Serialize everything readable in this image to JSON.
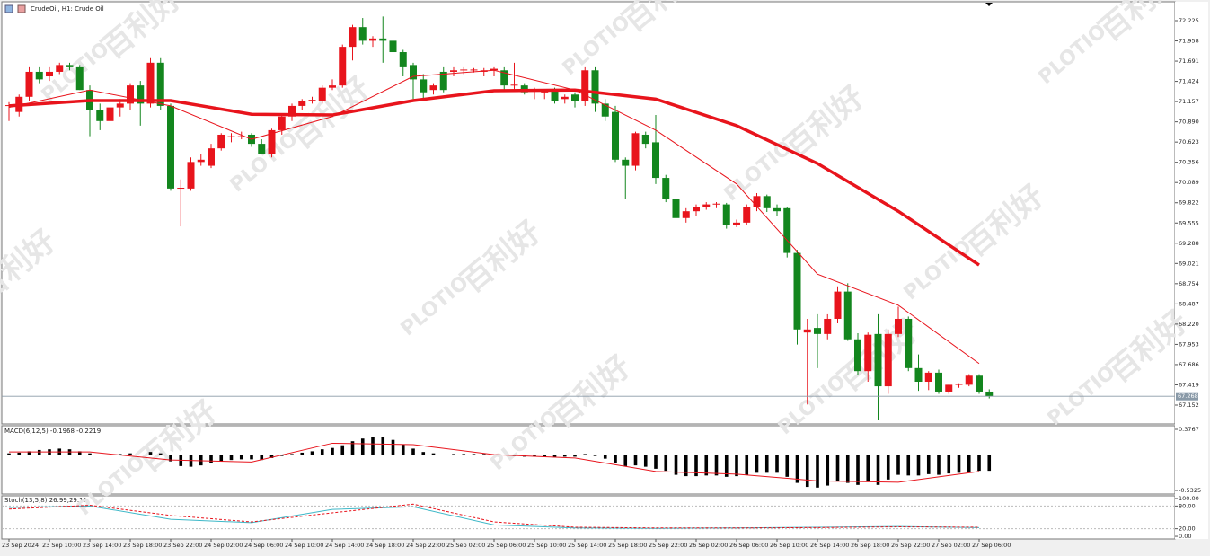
{
  "chart_data": [
    {
      "type": "candlestick",
      "title": "CrudeOil, H1:  Crude Oil",
      "watermark": [
        "百利好",
        "PLOTIO"
      ],
      "up_color": "#e8141c",
      "down_color": "#13861e",
      "ylim": [
        66.903,
        72.474
      ],
      "yticks": [
        72.225,
        71.958,
        71.691,
        71.424,
        71.157,
        {
          "value": 70.89,
          "label": "70.890"
        },
        70.623,
        70.356,
        70.089,
        69.822,
        69.555,
        69.288,
        69.021,
        68.754,
        68.487,
        {
          "value": 68.22,
          "label": "68.220"
        },
        67.953,
        67.686,
        67.419,
        67.152
      ],
      "current_price": 67.268,
      "x_labels": [
        "23 Sep 2024",
        "23 Sep 10:00",
        "23 Sep 14:00",
        "23 Sep 18:00",
        "23 Sep 22:00",
        "24 Sep 02:00",
        "24 Sep 06:00",
        "24 Sep 10:00",
        "24 Sep 14:00",
        "24 Sep 18:00",
        "24 Sep 22:00",
        "25 Sep 02:00",
        "25 Sep 06:00",
        "25 Sep 10:00",
        "25 Sep 14:00",
        "25 Sep 18:00",
        "25 Sep 22:00",
        "26 Sep 02:00",
        "26 Sep 06:00",
        "26 Sep 10:00",
        "26 Sep 14:00",
        "26 Sep 18:00",
        "26 Sep 22:00",
        "27 Sep 02:00",
        "27 Sep 06:00"
      ],
      "candles": [
        [
          71.1,
          71.15,
          70.9,
          71.11
        ],
        [
          71.02,
          71.25,
          70.96,
          71.22
        ],
        [
          71.22,
          71.61,
          71.17,
          71.55
        ],
        [
          71.55,
          71.61,
          71.4,
          71.45
        ],
        [
          71.49,
          71.61,
          71.43,
          71.55
        ],
        [
          71.55,
          71.67,
          71.52,
          71.64
        ],
        [
          71.64,
          71.67,
          71.57,
          71.61
        ],
        [
          71.61,
          71.64,
          71.31,
          71.31
        ],
        [
          71.31,
          71.37,
          70.7,
          71.05
        ],
        [
          71.05,
          71.13,
          70.78,
          70.9
        ],
        [
          70.9,
          71.1,
          70.84,
          71.08
        ],
        [
          71.08,
          71.19,
          70.96,
          71.13
        ],
        [
          71.13,
          71.4,
          71.05,
          71.37
        ],
        [
          71.37,
          71.43,
          70.84,
          71.13
        ],
        [
          71.13,
          71.73,
          71.08,
          71.67
        ],
        [
          71.67,
          71.73,
          71.05,
          71.1
        ],
        [
          71.1,
          71.13,
          69.98,
          70.01
        ],
        [
          70.01,
          70.13,
          69.51,
          70.02
        ],
        [
          70.01,
          70.42,
          69.98,
          70.36
        ],
        [
          70.36,
          70.46,
          70.31,
          70.39
        ],
        [
          70.31,
          70.6,
          70.28,
          70.54
        ],
        [
          70.54,
          70.74,
          70.51,
          70.72
        ],
        [
          70.69,
          70.74,
          70.62,
          70.7
        ],
        [
          70.69,
          70.76,
          70.66,
          70.7
        ],
        [
          70.72,
          70.74,
          70.56,
          70.6
        ],
        [
          70.6,
          70.66,
          70.46,
          70.46
        ],
        [
          70.46,
          70.8,
          70.42,
          70.78
        ],
        [
          70.78,
          70.98,
          70.72,
          70.96
        ],
        [
          70.96,
          71.13,
          70.9,
          71.1
        ],
        [
          71.1,
          71.19,
          71.05,
          71.17
        ],
        [
          71.17,
          71.22,
          71.13,
          71.18
        ],
        [
          71.17,
          71.37,
          71.13,
          71.34
        ],
        [
          71.34,
          71.45,
          71.31,
          71.37
        ],
        [
          71.37,
          71.91,
          71.34,
          71.88
        ],
        [
          71.88,
          72.17,
          71.7,
          72.14
        ],
        [
          72.14,
          72.26,
          71.91,
          71.96
        ],
        [
          71.96,
          72.02,
          71.88,
          71.99
        ],
        [
          71.99,
          72.28,
          71.67,
          71.96
        ],
        [
          71.96,
          72.0,
          71.67,
          71.81
        ],
        [
          71.81,
          71.84,
          71.49,
          71.61
        ],
        [
          71.64,
          71.67,
          71.19,
          71.45
        ],
        [
          71.45,
          71.52,
          71.16,
          71.28
        ],
        [
          71.31,
          71.4,
          71.25,
          71.37
        ],
        [
          71.55,
          71.61,
          71.28,
          71.31
        ],
        [
          71.55,
          71.61,
          71.49,
          71.57
        ],
        [
          71.57,
          71.61,
          71.52,
          71.58
        ],
        [
          71.57,
          71.6,
          71.54,
          71.58
        ],
        [
          71.55,
          71.6,
          71.49,
          71.57
        ],
        [
          71.57,
          71.61,
          71.49,
          71.59
        ],
        [
          71.57,
          71.61,
          71.31,
          71.37
        ],
        [
          71.37,
          71.67,
          71.31,
          71.38
        ],
        [
          71.37,
          71.4,
          71.25,
          71.28
        ],
        [
          71.31,
          71.34,
          71.19,
          71.32
        ],
        [
          71.28,
          71.31,
          71.19,
          71.29
        ],
        [
          71.31,
          71.34,
          71.13,
          71.17
        ],
        [
          71.19,
          71.25,
          71.13,
          71.22
        ],
        [
          71.25,
          71.28,
          71.08,
          71.17
        ],
        [
          71.17,
          71.61,
          71.1,
          71.57
        ],
        [
          71.57,
          71.61,
          71.02,
          71.13
        ],
        [
          71.13,
          71.19,
          70.9,
          70.96
        ],
        [
          71.02,
          71.1,
          70.36,
          70.39
        ],
        [
          70.39,
          70.42,
          69.87,
          70.31
        ],
        [
          70.31,
          70.76,
          70.25,
          70.74
        ],
        [
          70.72,
          70.76,
          70.54,
          70.6
        ],
        [
          70.62,
          70.98,
          70.07,
          70.15
        ],
        [
          70.15,
          70.19,
          69.83,
          69.87
        ],
        [
          69.87,
          69.91,
          69.24,
          69.62
        ],
        [
          69.62,
          69.75,
          69.56,
          69.71
        ],
        [
          69.71,
          69.8,
          69.65,
          69.77
        ],
        [
          69.77,
          69.83,
          69.73,
          69.8
        ],
        [
          69.8,
          69.83,
          69.75,
          69.81
        ],
        [
          69.8,
          69.82,
          69.48,
          69.53
        ],
        [
          69.53,
          69.6,
          69.5,
          69.56
        ],
        [
          69.56,
          69.8,
          69.53,
          69.77
        ],
        [
          69.77,
          69.95,
          69.71,
          69.91
        ],
        [
          69.91,
          69.93,
          69.7,
          69.75
        ],
        [
          69.75,
          69.8,
          69.65,
          69.71
        ],
        [
          69.75,
          69.77,
          69.1,
          69.16
        ],
        [
          69.16,
          69.2,
          67.95,
          68.15
        ],
        [
          68.11,
          68.29,
          67.16,
          68.15
        ],
        [
          68.17,
          68.35,
          67.64,
          68.09
        ],
        [
          68.09,
          68.35,
          68.02,
          68.29
        ],
        [
          68.29,
          68.72,
          68.23,
          68.65
        ],
        [
          68.65,
          68.76,
          68.0,
          68.02
        ],
        [
          68.02,
          68.1,
          67.55,
          67.6
        ],
        [
          67.6,
          68.11,
          67.46,
          68.08
        ],
        [
          68.09,
          68.35,
          66.95,
          67.4
        ],
        [
          67.4,
          68.15,
          67.3,
          68.09
        ],
        [
          68.09,
          68.45,
          68.05,
          68.29
        ],
        [
          68.29,
          68.32,
          67.6,
          67.64
        ],
        [
          67.64,
          67.82,
          67.34,
          67.46
        ],
        [
          67.46,
          67.6,
          67.35,
          67.58
        ],
        [
          67.58,
          67.62,
          67.3,
          67.33
        ],
        [
          67.33,
          67.42,
          67.3,
          67.42
        ],
        [
          67.42,
          67.44,
          67.38,
          67.43
        ],
        [
          67.42,
          67.56,
          67.4,
          67.54
        ],
        [
          67.54,
          67.56,
          67.3,
          67.33
        ],
        [
          67.33,
          67.36,
          67.24,
          67.27
        ]
      ],
      "series": [
        {
          "color": "#e8141c",
          "width": 1,
          "x": [
            0,
            8,
            16,
            24,
            32,
            40,
            48,
            56,
            64,
            72,
            80,
            88,
            96
          ],
          "values": [
            71.08,
            71.31,
            71.1,
            70.66,
            70.96,
            71.49,
            71.57,
            71.31,
            70.78,
            70.07,
            68.88,
            68.47,
            67.7
          ]
        },
        {
          "color": "#e8141c",
          "width": 3.5,
          "x": [
            0,
            8,
            16,
            24,
            32,
            40,
            48,
            56,
            64,
            72,
            80,
            88,
            96
          ],
          "values": [
            71.1,
            71.17,
            71.17,
            70.99,
            70.98,
            71.17,
            71.3,
            71.31,
            71.19,
            70.84,
            70.34,
            69.71,
            69.0
          ]
        }
      ]
    },
    {
      "type": "macd",
      "title": "MACD(6,12,5) -0.1968 -0.2219",
      "ylim": [
        -0.586,
        0.43
      ],
      "yticks": [
        0.3767,
        -0.5325
      ],
      "bar_color": "#000000",
      "values": [
        0.02,
        0.03,
        0.05,
        0.07,
        0.08,
        0.09,
        0.08,
        0.05,
        0.02,
        -0.01,
        0.0,
        0.01,
        0.02,
        0.0,
        0.04,
        0.02,
        -0.1,
        -0.17,
        -0.18,
        -0.16,
        -0.13,
        -0.1,
        -0.08,
        -0.07,
        -0.07,
        -0.08,
        -0.05,
        -0.02,
        0.01,
        0.03,
        0.05,
        0.08,
        0.1,
        0.14,
        0.2,
        0.24,
        0.26,
        0.26,
        0.22,
        0.15,
        0.09,
        0.04,
        0.02,
        0.0,
        0.01,
        0.01,
        0.01,
        0.01,
        0.0,
        -0.01,
        -0.02,
        -0.03,
        -0.03,
        -0.03,
        -0.04,
        -0.03,
        -0.03,
        0.01,
        -0.02,
        -0.06,
        -0.12,
        -0.17,
        -0.16,
        -0.18,
        -0.21,
        -0.24,
        -0.3,
        -0.32,
        -0.32,
        -0.31,
        -0.31,
        -0.33,
        -0.32,
        -0.3,
        -0.27,
        -0.27,
        -0.27,
        -0.33,
        -0.42,
        -0.48,
        -0.49,
        -0.46,
        -0.4,
        -0.42,
        -0.45,
        -0.4,
        -0.45,
        -0.37,
        -0.3,
        -0.31,
        -0.31,
        -0.29,
        -0.3,
        -0.28,
        -0.27,
        -0.26,
        -0.24,
        -0.24
      ],
      "series": [
        {
          "color": "#e8141c",
          "x": [
            0,
            8,
            16,
            24,
            32,
            40,
            48,
            56,
            64,
            72,
            80,
            88,
            96
          ],
          "values": [
            0.04,
            0.04,
            -0.08,
            -0.11,
            0.17,
            0.15,
            0.0,
            -0.05,
            -0.25,
            -0.29,
            -0.39,
            -0.41,
            -0.25
          ]
        }
      ]
    },
    {
      "type": "stochastic",
      "title": "Stoch(13,5,8) 26.99,29.11",
      "ylim": [
        -7,
        107
      ],
      "yticks": [
        {
          "value": 100,
          "label": "100.00"
        },
        {
          "value": 80,
          "label": "80.00"
        },
        {
          "value": 20,
          "label": "20.00"
        },
        {
          "value": 0,
          "label": "0.00"
        }
      ],
      "series": [
        {
          "color": "#3fb8c8",
          "dash": false,
          "x": [
            0,
            8,
            16,
            24,
            32,
            40,
            48,
            56,
            64,
            72,
            80,
            88,
            96
          ],
          "values": [
            76,
            80,
            45,
            36,
            71,
            78,
            30,
            22,
            21,
            22,
            24,
            26,
            23
          ]
        },
        {
          "color": "#e8141c",
          "dash": true,
          "x": [
            0,
            8,
            16,
            24,
            32,
            40,
            48,
            56,
            64,
            72,
            80,
            88,
            96
          ],
          "values": [
            72,
            82,
            55,
            38,
            62,
            85,
            38,
            24,
            22,
            22,
            23,
            25,
            24
          ]
        }
      ]
    }
  ]
}
